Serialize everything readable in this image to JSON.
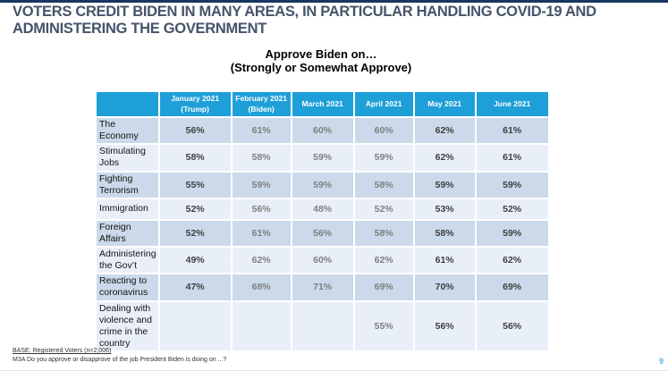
{
  "slide": {
    "title": "VOTERS CREDIT BIDEN IN MANY AREAS, IN PARTICULAR HANDLING COVID-19 AND ADMINISTERING THE GOVERNMENT",
    "subtitle_line1": "Approve Biden on…",
    "subtitle_line2": "(Strongly or Somewhat Approve)",
    "page_number": "9"
  },
  "table": {
    "columns": [
      "",
      "January 2021\n(Trump)",
      "February 2021\n(Biden)",
      "March 2021",
      "April 2021",
      "May 2021",
      "June 2021"
    ],
    "rows": [
      {
        "label": "The Economy",
        "values": [
          "56%",
          "61%",
          "60%",
          "60%",
          "62%",
          "61%"
        ]
      },
      {
        "label": "Stimulating Jobs",
        "values": [
          "58%",
          "58%",
          "59%",
          "59%",
          "62%",
          "61%"
        ]
      },
      {
        "label": "Fighting Terrorism",
        "values": [
          "55%",
          "59%",
          "59%",
          "58%",
          "59%",
          "59%"
        ]
      },
      {
        "label": "Immigration",
        "values": [
          "52%",
          "56%",
          "48%",
          "52%",
          "53%",
          "52%"
        ]
      },
      {
        "label": "Foreign Affairs",
        "values": [
          "52%",
          "61%",
          "56%",
          "58%",
          "58%",
          "59%"
        ]
      },
      {
        "label": "Administering the Gov’t",
        "values": [
          "49%",
          "62%",
          "60%",
          "62%",
          "61%",
          "62%"
        ]
      },
      {
        "label": "Reacting to coronavirus",
        "values": [
          "47%",
          "68%",
          "71%",
          "69%",
          "70%",
          "69%"
        ]
      },
      {
        "label": "Dealing with violence and crime in the country",
        "values": [
          "",
          "",
          "",
          "55%",
          "56%",
          "56%"
        ]
      }
    ]
  },
  "footer": {
    "base": "BASE: Registered Voters (n=2,006)",
    "question": "M3A Do you approve or disapprove of the job President Biden is doing on ...?"
  },
  "colors": {
    "top_rule": "#17375E",
    "title_color": "#44546A",
    "header_bg": "#1E9FD8",
    "band_dark": "#CBD9EA",
    "band_light": "#E9EFF8",
    "emphasis_text": "#3F3F3F",
    "dim_text": "#7F7F7F",
    "page_number_color": "#56B2E3"
  }
}
